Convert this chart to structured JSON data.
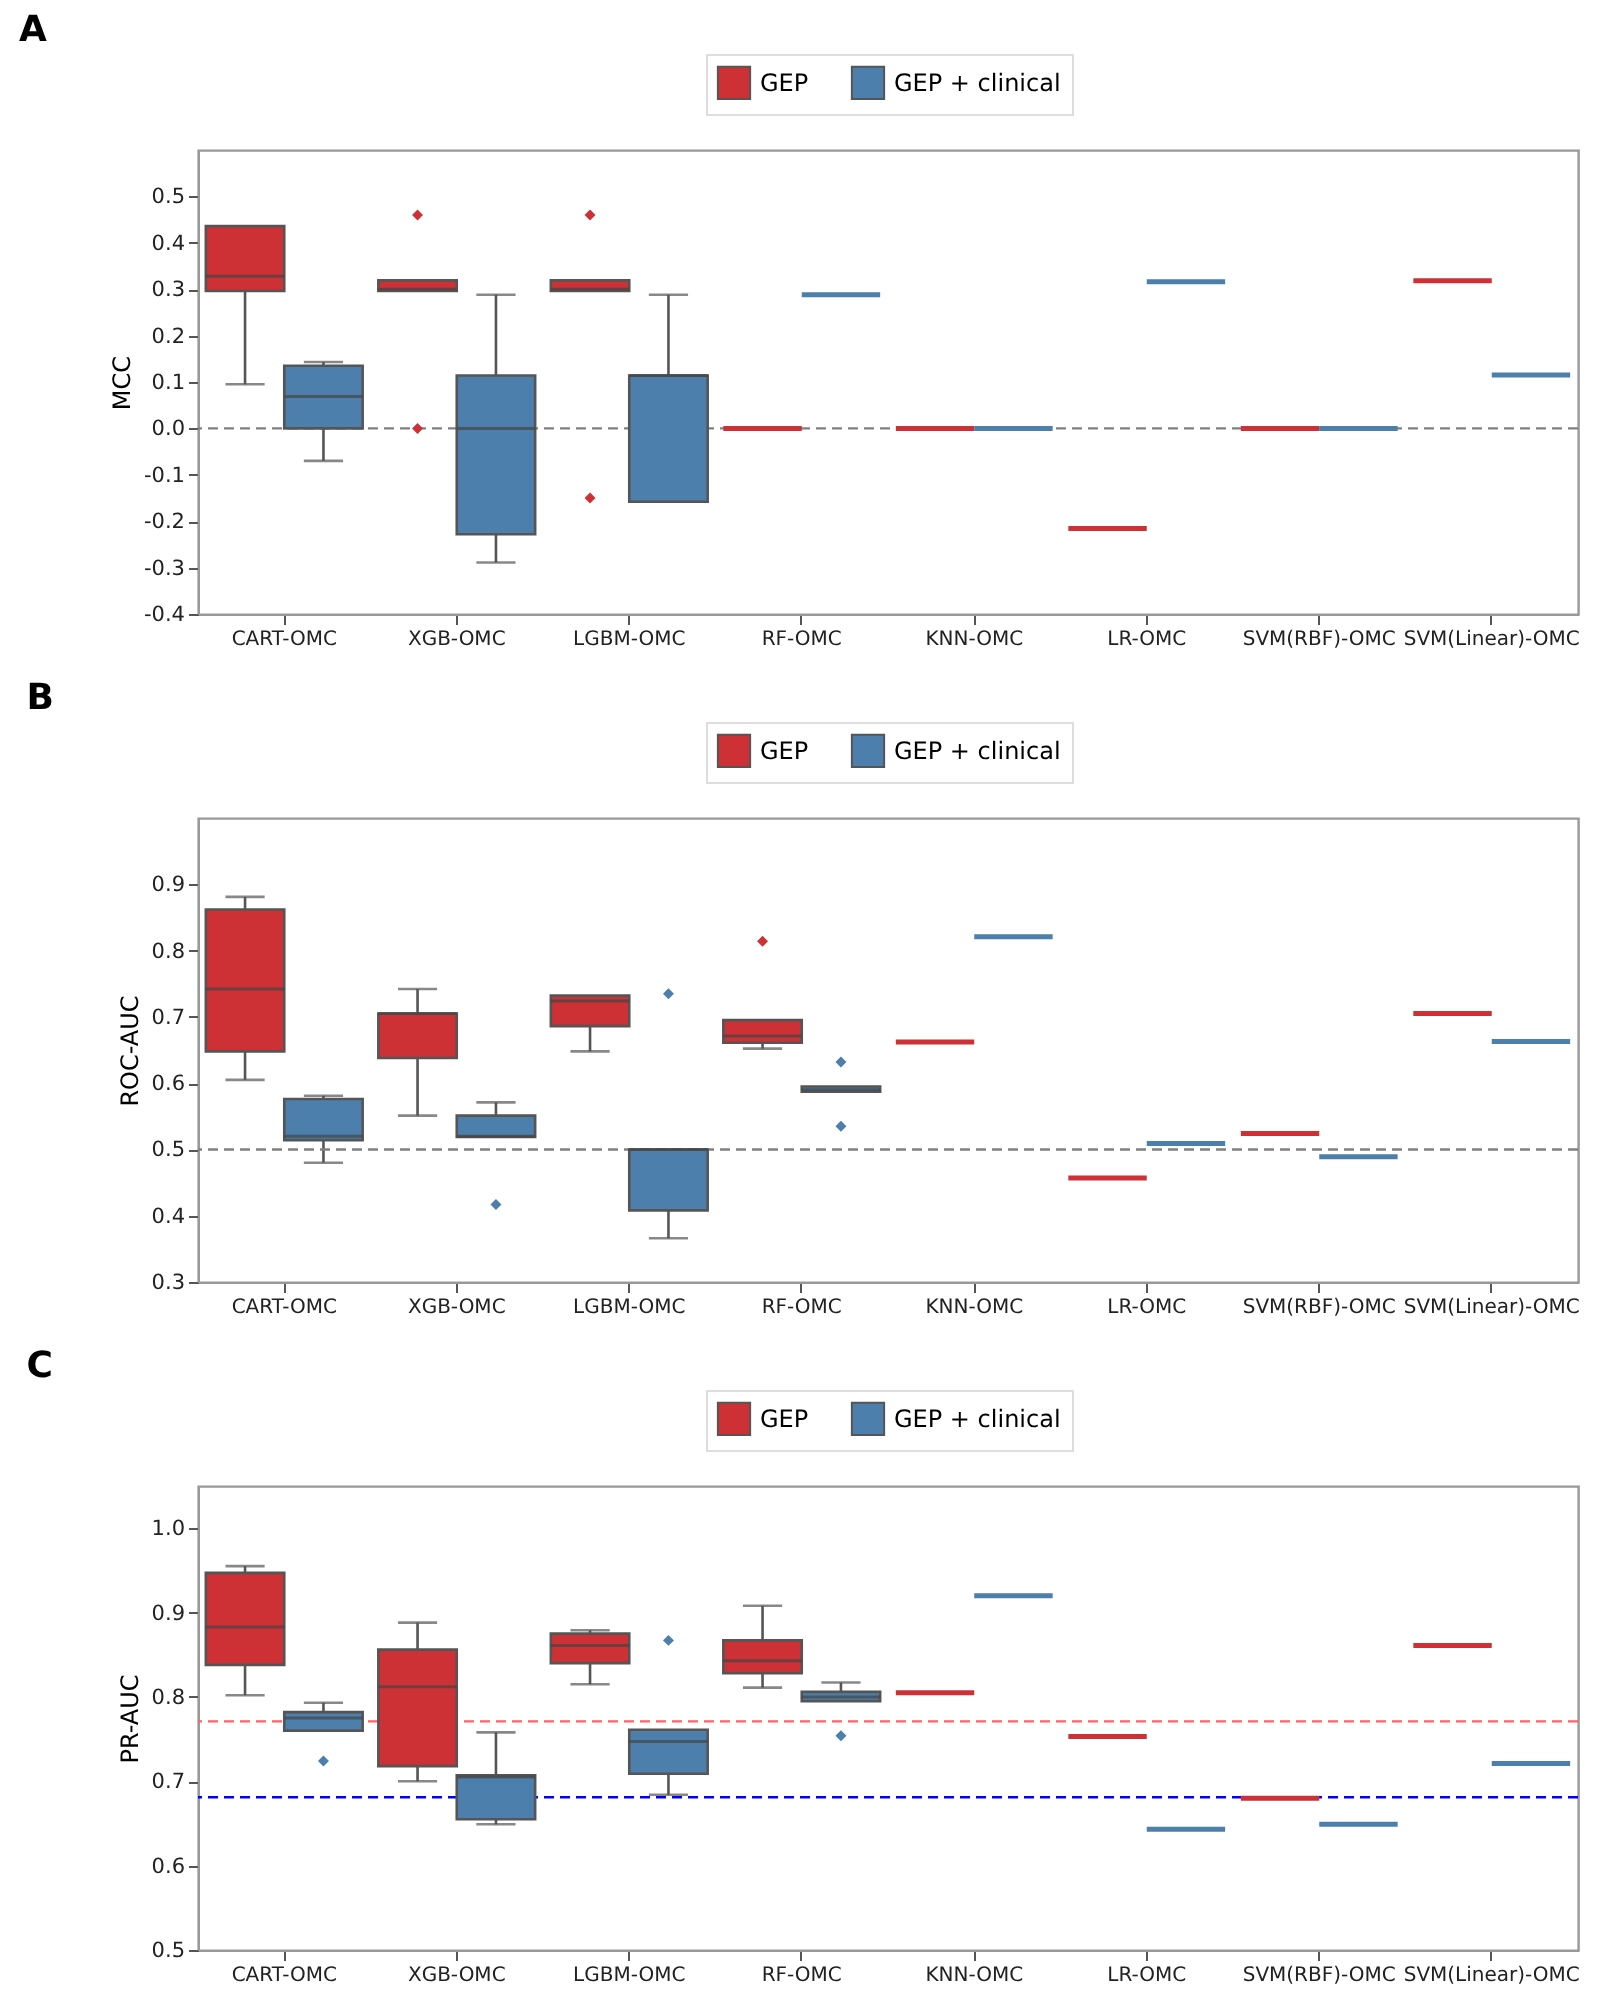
{
  "chart_data": [
    {
      "type": "box",
      "title": "A",
      "ylabel": "MCC",
      "legend": "top",
      "categories": [
        "CART-OMC",
        "XGB-OMC",
        "LGBM-OMC",
        "RF-OMC",
        "KNN-OMC",
        "LR-OMC",
        "SVM(RBF)-OMC",
        "SVM(Linear)-OMC"
      ],
      "ylim": [
        -0.4,
        0.6
      ],
      "yticks": [
        -0.4,
        -0.3,
        -0.2,
        -0.1,
        {
          "value": 0,
          "label": "0.0"
        },
        0.1,
        0.2,
        0.3,
        0.4,
        0.5
      ],
      "ref_lines": [
        {
          "axis": "y",
          "value": 0,
          "color": "#808080",
          "line_style": "dashed"
        }
      ],
      "series": [
        {
          "name": "GEP",
          "color": "#cd3035",
          "boxes": [
            {
              "low": 0.095,
              "q1": 0.296,
              "median": 0.328,
              "q3": 0.436,
              "high": 0.436
            },
            {
              "low": 0.296,
              "q1": 0.296,
              "median": 0.3,
              "q3": 0.319,
              "high": 0.319,
              "outliers": [
                0.46,
                0
              ]
            },
            {
              "low": 0.296,
              "q1": 0.296,
              "median": 0.3,
              "q3": 0.319,
              "high": 0.319,
              "outliers": [
                0.46,
                -0.15
              ]
            },
            {
              "low": 0,
              "q1": 0,
              "median": 0,
              "q3": 0,
              "high": 0
            },
            {
              "low": 0,
              "q1": 0,
              "median": 0,
              "q3": 0,
              "high": 0
            },
            {
              "low": -0.216,
              "q1": -0.216,
              "median": -0.216,
              "q3": -0.216,
              "high": -0.216
            },
            {
              "low": 0,
              "q1": 0,
              "median": 0,
              "q3": 0,
              "high": 0
            },
            {
              "low": 0.318,
              "q1": 0.318,
              "median": 0.318,
              "q3": 0.318,
              "high": 0.318
            }
          ]
        },
        {
          "name": "GEP + clinical",
          "color": "#4c7fab",
          "boxes": [
            {
              "low": -0.07,
              "q1": 0,
              "median": 0.069,
              "q3": 0.135,
              "high": 0.143
            },
            {
              "low": -0.289,
              "q1": -0.228,
              "median": 0,
              "q3": 0.114,
              "high": 0.288
            },
            {
              "low": -0.158,
              "q1": -0.158,
              "median": 0.114,
              "q3": 0.114,
              "high": 0.288
            },
            {
              "low": 0.288,
              "q1": 0.288,
              "median": 0.288,
              "q3": 0.288,
              "high": 0.288
            },
            {
              "low": 0,
              "q1": 0,
              "median": 0,
              "q3": 0,
              "high": 0
            },
            {
              "low": 0.316,
              "q1": 0.316,
              "median": 0.316,
              "q3": 0.316,
              "high": 0.316
            },
            {
              "low": 0,
              "q1": 0,
              "median": 0,
              "q3": 0,
              "high": 0
            },
            {
              "low": 0.115,
              "q1": 0.115,
              "median": 0.115,
              "q3": 0.115,
              "high": 0.115
            }
          ]
        }
      ]
    },
    {
      "type": "box",
      "title": "B",
      "ylabel": "ROC-AUC",
      "legend": "top",
      "categories": [
        "CART-OMC",
        "XGB-OMC",
        "LGBM-OMC",
        "RF-OMC",
        "KNN-OMC",
        "LR-OMC",
        "SVM(RBF)-OMC",
        "SVM(Linear)-OMC"
      ],
      "ylim": [
        0.3,
        1.0
      ],
      "yticks": [
        0.3,
        0.4,
        0.5,
        0.6,
        0.7,
        0.8,
        0.9
      ],
      "ref_lines": [
        {
          "axis": "y",
          "value": 0.5,
          "color": "#808080",
          "line_style": "dashed"
        }
      ],
      "series": [
        {
          "name": "GEP",
          "color": "#cd3035",
          "boxes": [
            {
              "low": 0.605,
              "q1": 0.648,
              "median": 0.742,
              "q3": 0.862,
              "high": 0.881
            },
            {
              "low": 0.551,
              "q1": 0.638,
              "median": 0.705,
              "q3": 0.705,
              "high": 0.742
            },
            {
              "low": 0.648,
              "q1": 0.686,
              "median": 0.724,
              "q3": 0.732,
              "high": 0.732
            },
            {
              "low": 0.652,
              "q1": 0.661,
              "median": 0.671,
              "q3": 0.695,
              "high": 0.695,
              "outliers": [
                0.814
              ]
            },
            {
              "low": 0.662,
              "q1": 0.662,
              "median": 0.662,
              "q3": 0.662,
              "high": 0.662
            },
            {
              "low": 0.457,
              "q1": 0.457,
              "median": 0.457,
              "q3": 0.457,
              "high": 0.457
            },
            {
              "low": 0.524,
              "q1": 0.524,
              "median": 0.524,
              "q3": 0.524,
              "high": 0.524
            },
            {
              "low": 0.705,
              "q1": 0.705,
              "median": 0.705,
              "q3": 0.705,
              "high": 0.705
            }
          ]
        },
        {
          "name": "GEP + clinical",
          "color": "#4c7fab",
          "boxes": [
            {
              "low": 0.48,
              "q1": 0.514,
              "median": 0.52,
              "q3": 0.576,
              "high": 0.581
            },
            {
              "low": 0.519,
              "q1": 0.519,
              "median": 0.52,
              "q3": 0.551,
              "high": 0.571,
              "outliers": [
                0.417
              ]
            },
            {
              "low": 0.366,
              "q1": 0.408,
              "median": 0.5,
              "q3": 0.5,
              "high": 0.5,
              "outliers": [
                0.735
              ]
            },
            {
              "low": 0.587,
              "q1": 0.587,
              "median": 0.59,
              "q3": 0.595,
              "high": 0.595,
              "outliers": [
                0.632,
                0.535
              ]
            },
            {
              "low": 0.821,
              "q1": 0.821,
              "median": 0.821,
              "q3": 0.821,
              "high": 0.821
            },
            {
              "low": 0.509,
              "q1": 0.509,
              "median": 0.509,
              "q3": 0.509,
              "high": 0.509
            },
            {
              "low": 0.489,
              "q1": 0.489,
              "median": 0.489,
              "q3": 0.489,
              "high": 0.489
            },
            {
              "low": 0.663,
              "q1": 0.663,
              "median": 0.663,
              "q3": 0.663,
              "high": 0.663
            }
          ]
        }
      ]
    },
    {
      "type": "box",
      "title": "C",
      "ylabel": "PR-AUC",
      "legend": "top",
      "categories": [
        "CART-OMC",
        "XGB-OMC",
        "LGBM-OMC",
        "RF-OMC",
        "KNN-OMC",
        "LR-OMC",
        "SVM(RBF)-OMC",
        "SVM(Linear)-OMC"
      ],
      "ylim": [
        0.5,
        1.05
      ],
      "yticks": [
        0.5,
        0.6,
        0.7,
        0.8,
        0.9,
        {
          "value": 1,
          "label": "1.0"
        }
      ],
      "ref_lines": [
        {
          "axis": "y",
          "value": 0.771,
          "color": "#ff6060",
          "line_style": "dashed"
        },
        {
          "axis": "y",
          "value": 0.681,
          "color": "#0000ff",
          "line_style": "dashed"
        }
      ],
      "series": [
        {
          "name": "GEP",
          "color": "#cd3035",
          "boxes": [
            {
              "low": 0.802,
              "q1": 0.838,
              "median": 0.883,
              "q3": 0.947,
              "high": 0.955
            },
            {
              "low": 0.7,
              "q1": 0.718,
              "median": 0.812,
              "q3": 0.856,
              "high": 0.888
            },
            {
              "low": 0.815,
              "q1": 0.84,
              "median": 0.861,
              "q3": 0.875,
              "high": 0.879
            },
            {
              "low": 0.811,
              "q1": 0.828,
              "median": 0.843,
              "q3": 0.867,
              "high": 0.908
            },
            {
              "low": 0.805,
              "q1": 0.805,
              "median": 0.805,
              "q3": 0.805,
              "high": 0.805
            },
            {
              "low": 0.753,
              "q1": 0.753,
              "median": 0.753,
              "q3": 0.753,
              "high": 0.753
            },
            {
              "low": 0.68,
              "q1": 0.68,
              "median": 0.68,
              "q3": 0.68,
              "high": 0.68
            },
            {
              "low": 0.861,
              "q1": 0.861,
              "median": 0.861,
              "q3": 0.861,
              "high": 0.861
            }
          ]
        },
        {
          "name": "GEP + clinical",
          "color": "#4c7fab",
          "boxes": [
            {
              "low": 0.76,
              "q1": 0.76,
              "median": 0.775,
              "q3": 0.782,
              "high": 0.793,
              "outliers": [
                0.724
              ]
            },
            {
              "low": 0.649,
              "q1": 0.655,
              "median": 0.705,
              "q3": 0.707,
              "high": 0.758
            },
            {
              "low": 0.684,
              "q1": 0.709,
              "median": 0.747,
              "q3": 0.761,
              "high": 0.761,
              "outliers": [
                0.867
              ]
            },
            {
              "low": 0.795,
              "q1": 0.795,
              "median": 0.8,
              "q3": 0.806,
              "high": 0.817,
              "outliers": [
                0.754
              ]
            },
            {
              "low": 0.92,
              "q1": 0.92,
              "median": 0.92,
              "q3": 0.92,
              "high": 0.92
            },
            {
              "low": 0.643,
              "q1": 0.643,
              "median": 0.643,
              "q3": 0.643,
              "high": 0.643
            },
            {
              "low": 0.649,
              "q1": 0.649,
              "median": 0.649,
              "q3": 0.649,
              "high": 0.649
            },
            {
              "low": 0.721,
              "q1": 0.721,
              "median": 0.721,
              "q3": 0.721,
              "high": 0.721
            }
          ]
        }
      ]
    }
  ]
}
